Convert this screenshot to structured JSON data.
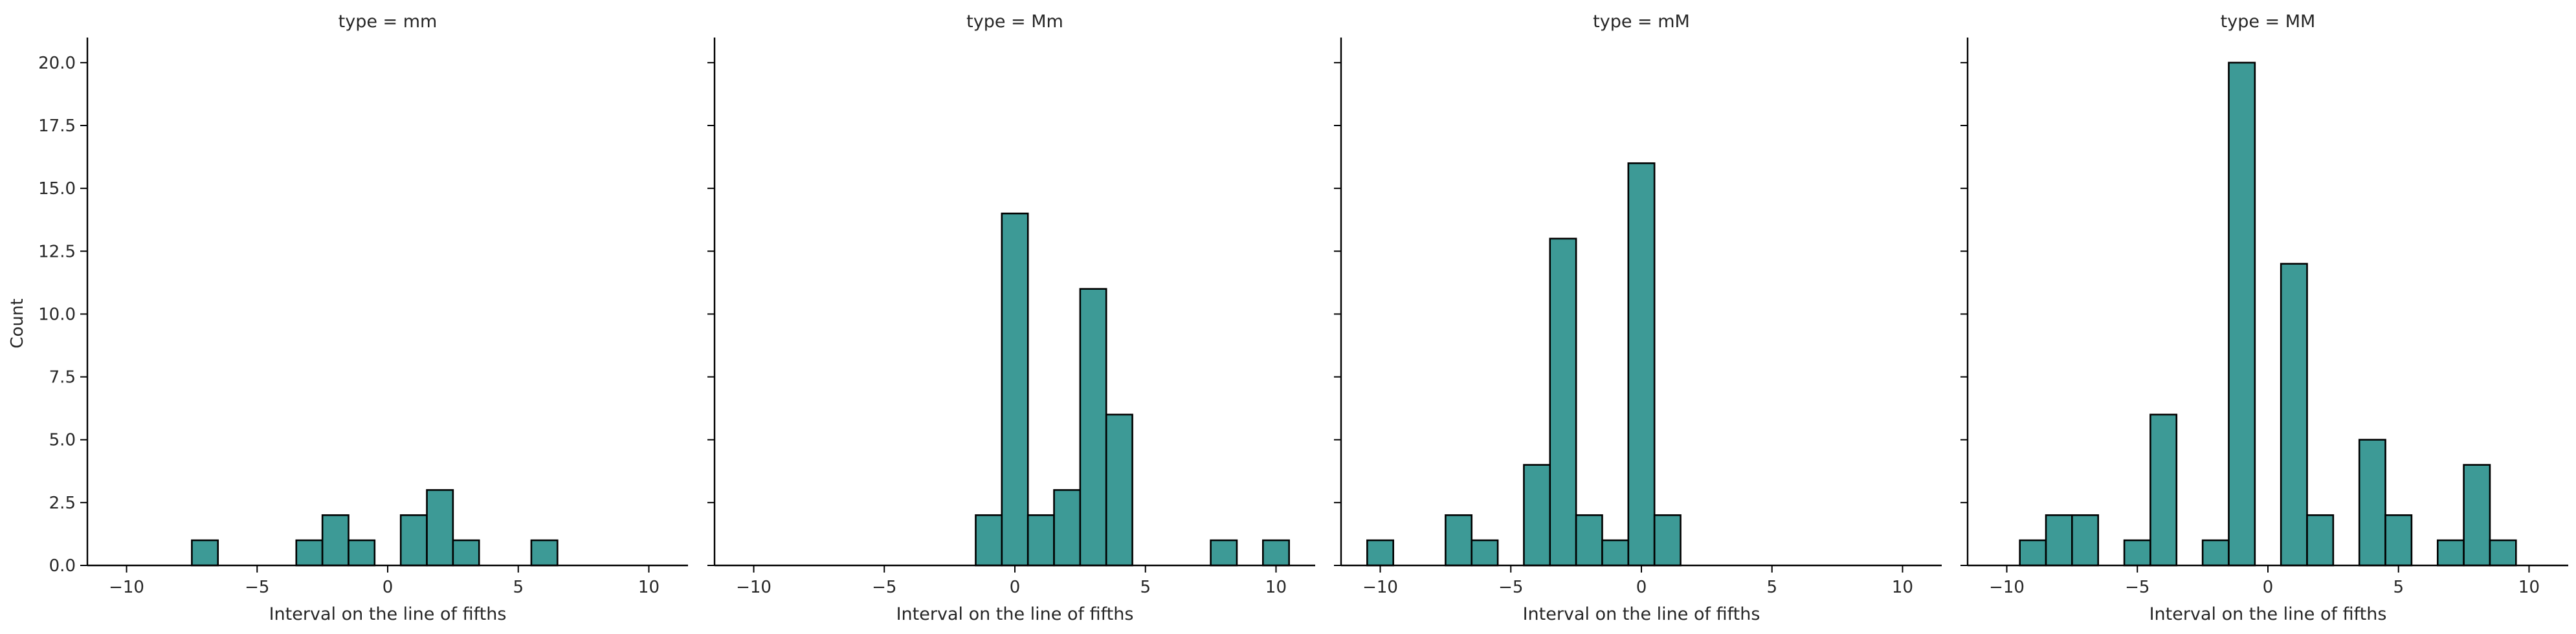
{
  "chart_data": {
    "type": "bar",
    "shared_ylabel": "Count",
    "xlabel": "Interval on the line of fifths",
    "xlim": [
      -11.5,
      11.5
    ],
    "ylim": [
      0,
      21
    ],
    "x_ticks": [
      -10,
      -5,
      0,
      5,
      10
    ],
    "x_tick_labels": [
      "−10",
      "−5",
      "0",
      "5",
      "10"
    ],
    "y_ticks": [
      0,
      2.5,
      5,
      7.5,
      10,
      12.5,
      15,
      17.5,
      20
    ],
    "y_tick_labels": [
      "0.0",
      "2.5",
      "5.0",
      "7.5",
      "10.0",
      "12.5",
      "15.0",
      "17.5",
      "20.0"
    ],
    "bar_color": "#3d9a96",
    "edge_color": "#000000",
    "bin_width": 1,
    "panels": [
      {
        "title": "type = mm",
        "bins": [
          {
            "center": -7,
            "count": 1
          },
          {
            "center": -3,
            "count": 1
          },
          {
            "center": -2,
            "count": 2
          },
          {
            "center": -1,
            "count": 1
          },
          {
            "center": 1,
            "count": 2
          },
          {
            "center": 2,
            "count": 3
          },
          {
            "center": 3,
            "count": 1
          },
          {
            "center": 6,
            "count": 1
          }
        ]
      },
      {
        "title": "type = Mm",
        "bins": [
          {
            "center": -1,
            "count": 2
          },
          {
            "center": 0,
            "count": 14
          },
          {
            "center": 1,
            "count": 2
          },
          {
            "center": 2,
            "count": 3
          },
          {
            "center": 3,
            "count": 11
          },
          {
            "center": 4,
            "count": 6
          },
          {
            "center": 8,
            "count": 1
          },
          {
            "center": 10,
            "count": 1
          }
        ]
      },
      {
        "title": "type = mM",
        "bins": [
          {
            "center": -10,
            "count": 1
          },
          {
            "center": -7,
            "count": 2
          },
          {
            "center": -6,
            "count": 1
          },
          {
            "center": -4,
            "count": 4
          },
          {
            "center": -3,
            "count": 13
          },
          {
            "center": -2,
            "count": 2
          },
          {
            "center": -1,
            "count": 1
          },
          {
            "center": 0,
            "count": 16
          },
          {
            "center": 1,
            "count": 2
          }
        ]
      },
      {
        "title": "type = MM",
        "bins": [
          {
            "center": -9,
            "count": 1
          },
          {
            "center": -8,
            "count": 2
          },
          {
            "center": -7,
            "count": 2
          },
          {
            "center": -5,
            "count": 1
          },
          {
            "center": -4,
            "count": 6
          },
          {
            "center": -2,
            "count": 1
          },
          {
            "center": -1,
            "count": 20
          },
          {
            "center": 1,
            "count": 12
          },
          {
            "center": 2,
            "count": 2
          },
          {
            "center": 4,
            "count": 5
          },
          {
            "center": 5,
            "count": 2
          },
          {
            "center": 7,
            "count": 1
          },
          {
            "center": 8,
            "count": 4
          },
          {
            "center": 9,
            "count": 1
          }
        ]
      }
    ]
  }
}
